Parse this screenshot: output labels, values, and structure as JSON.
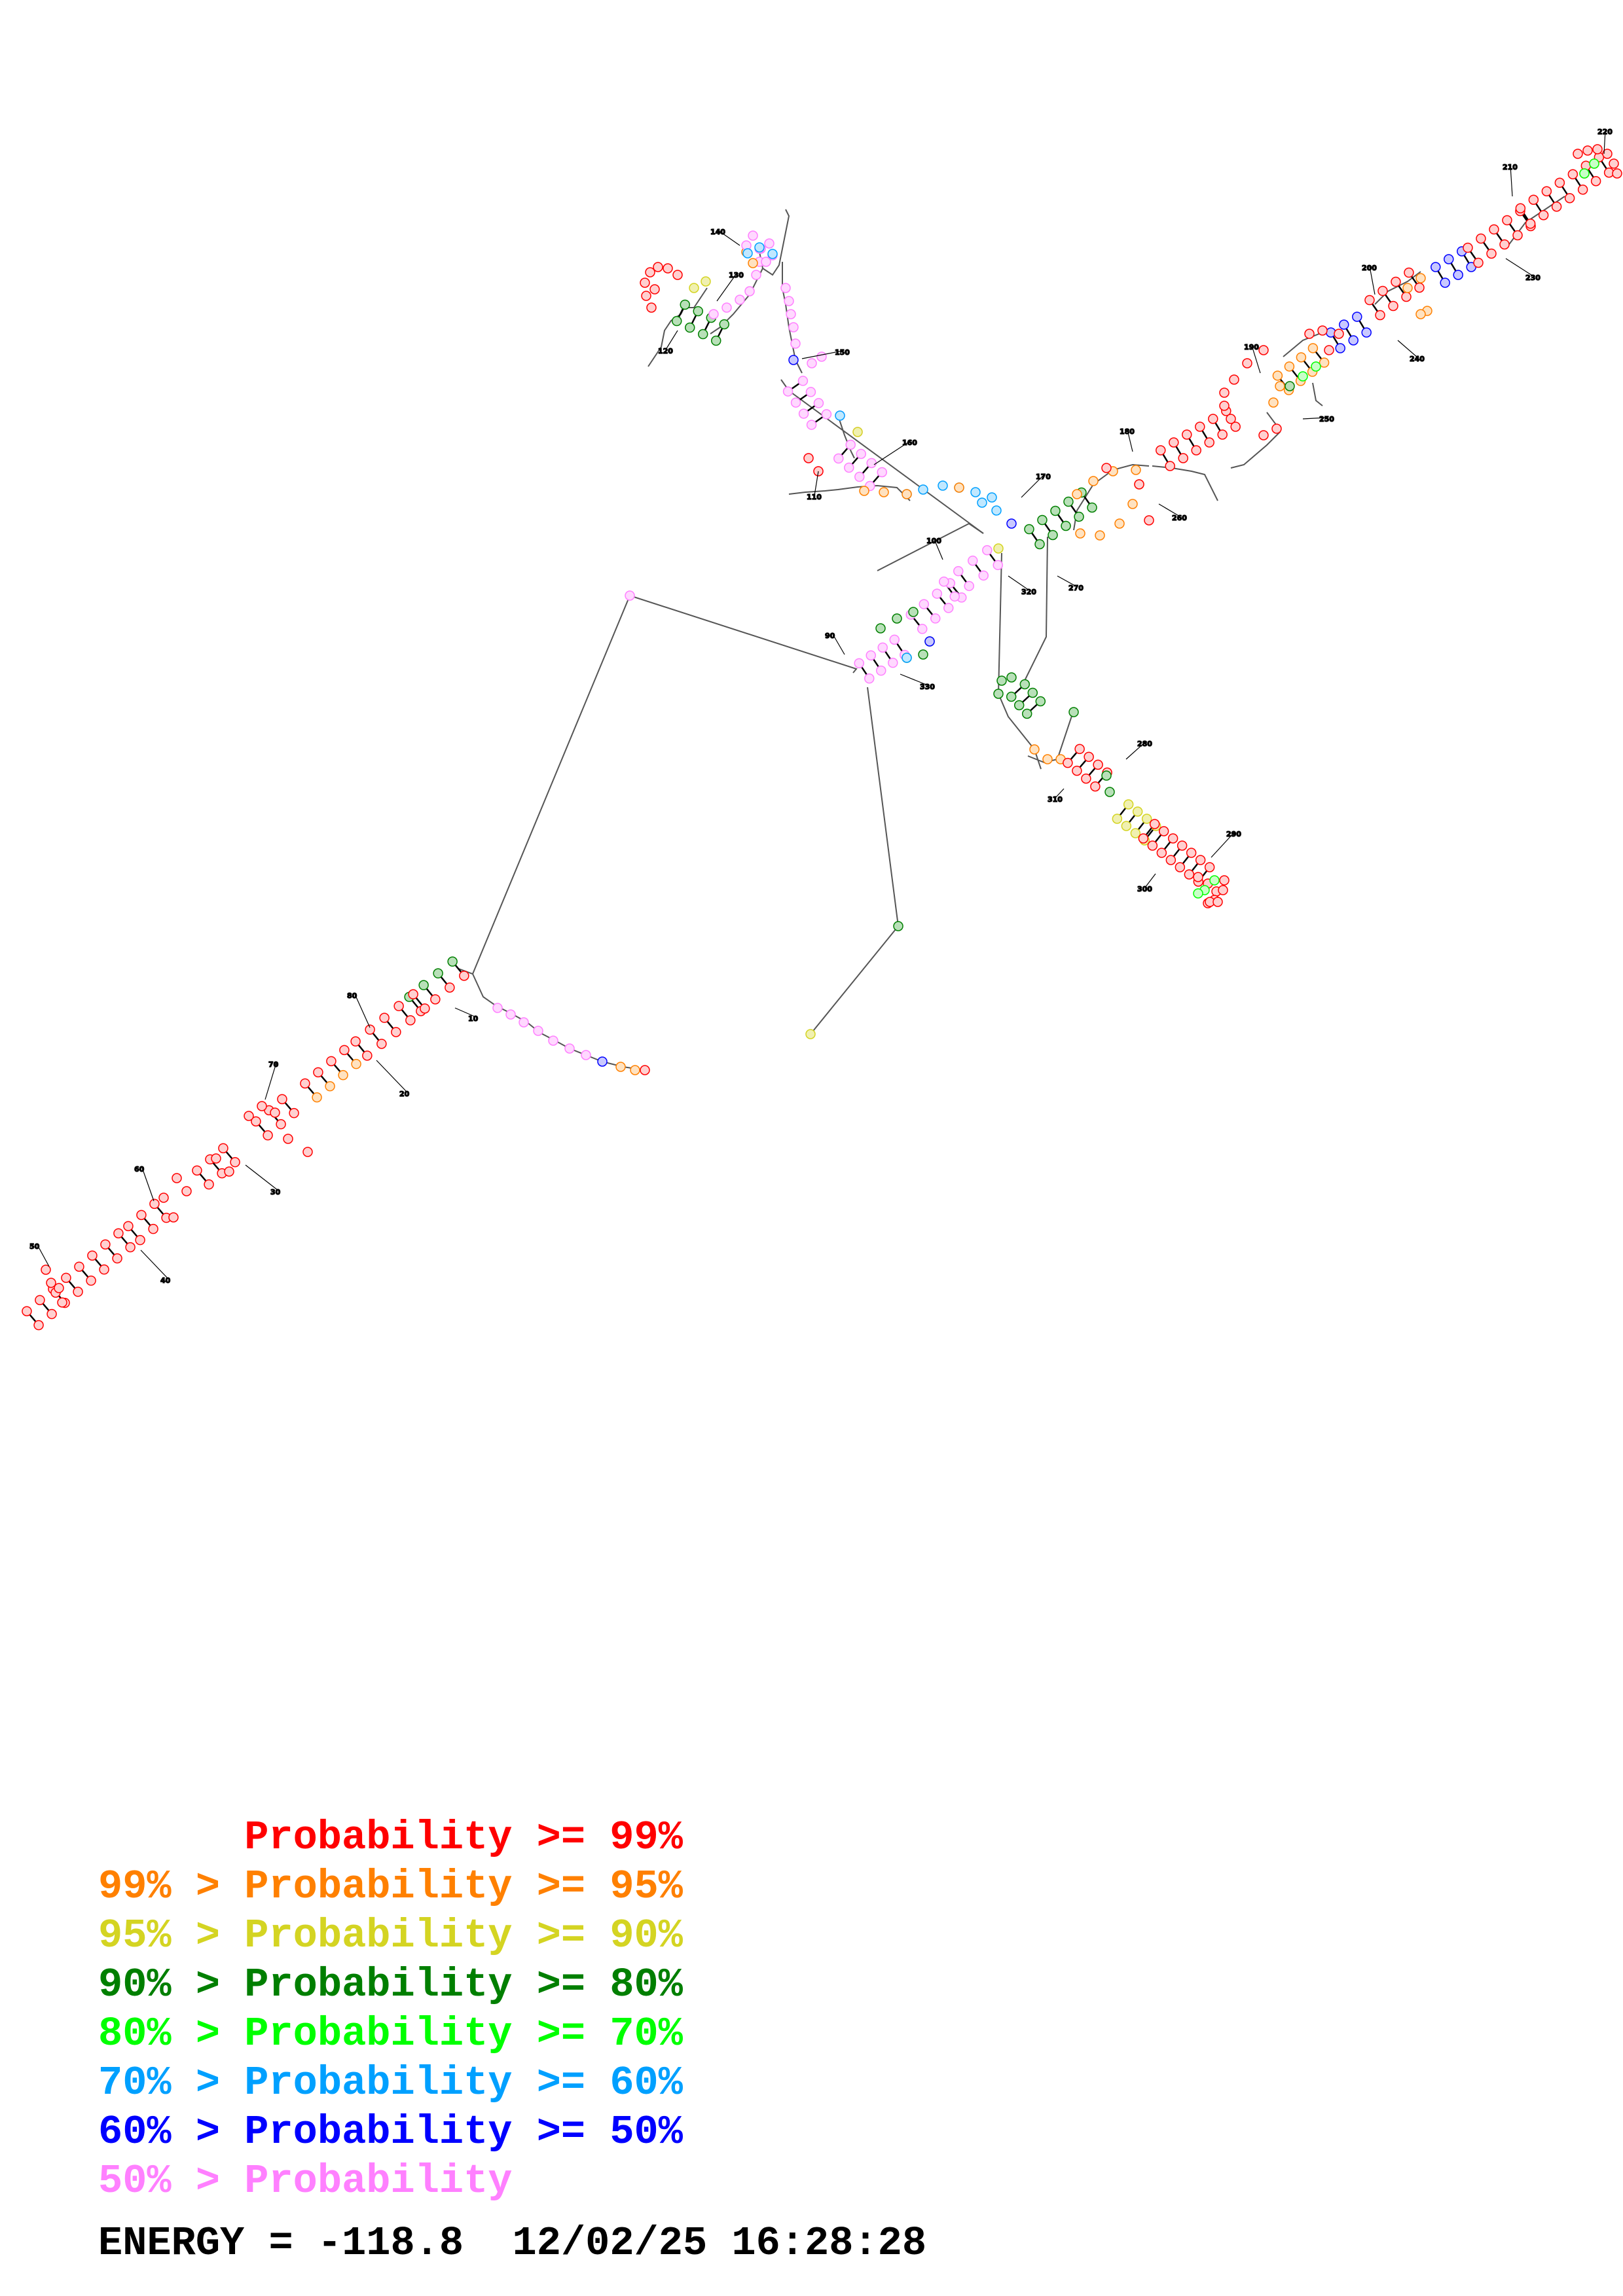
{
  "base_numbers": [
    "10",
    "20",
    "30",
    "40",
    "50",
    "60",
    "70",
    "80",
    "90",
    "100",
    "110",
    "120",
    "130",
    "140",
    "150",
    "160",
    "170",
    "180",
    "190",
    "200",
    "210",
    "220",
    "230",
    "240",
    "250",
    "260",
    "270",
    "280",
    "290",
    "300",
    "310",
    "320",
    "330"
  ],
  "legend": [
    {
      "prefix": "",
      "label": "Probability >= 99%",
      "color": "#ff0000"
    },
    {
      "prefix": "99% > ",
      "label": "Probability >= 95%",
      "color": "#ff8000"
    },
    {
      "prefix": "95% > ",
      "label": "Probability >= 90%",
      "color": "#d4d422"
    },
    {
      "prefix": "90% > ",
      "label": "Probability >= 80%",
      "color": "#007f00"
    },
    {
      "prefix": "80% > ",
      "label": "Probability >= 70%",
      "color": "#00ff00"
    },
    {
      "prefix": "70% > ",
      "label": "Probability >= 60%",
      "color": "#00a0ff"
    },
    {
      "prefix": "60% > ",
      "label": "Probability >= 50%",
      "color": "#0000ff"
    },
    {
      "prefix": "50% > ",
      "label": "Probability",
      "color": "#ff80ff"
    }
  ],
  "energy": {
    "label": "ENERGY = ",
    "value": "-118.8",
    "datetime": "12/02/25 16:28:28"
  },
  "colors": {
    "p99": "#ff0000",
    "p95": "#ff8000",
    "p90": "#d4d422",
    "p80": "#007f00",
    "p70": "#00ff00",
    "p60": "#00a0ff",
    "p50": "#0000ff",
    "plow": "#ff80ff"
  }
}
